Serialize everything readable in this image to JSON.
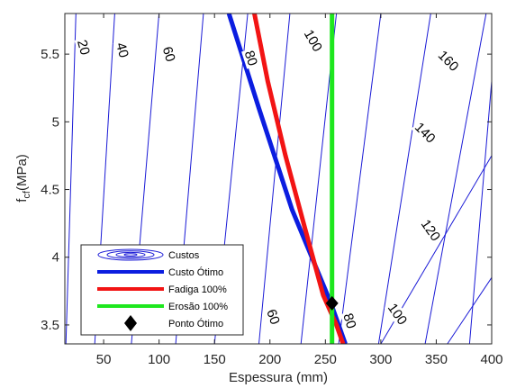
{
  "chart_data": {
    "type": "line",
    "xlabel": "Espessura (mm)",
    "ylabel_main": "f",
    "ylabel_sub": "cf",
    "ylabel_unit": "(MPa)",
    "xlim": [
      15,
      400
    ],
    "ylim": [
      3.36,
      5.8
    ],
    "xticks": [
      50,
      100,
      150,
      200,
      250,
      300,
      350,
      400
    ],
    "xtick_labels": [
      "50",
      "100",
      "150",
      "200",
      "250",
      "300",
      "350",
      "400"
    ],
    "yticks": [
      3.5,
      4,
      4.5,
      5,
      5.5
    ],
    "ytick_labels": [
      "3.5",
      "4",
      "4.5",
      "5",
      "5.5"
    ],
    "contours": {
      "color": "#1a1ad6",
      "lines": [
        {
          "points": [
            [
              25,
              5.8
            ],
            [
              16,
              3.36
            ]
          ]
        },
        {
          "points": [
            [
              60,
              5.8
            ],
            [
              42,
              3.36
            ]
          ]
        },
        {
          "points": [
            [
              100,
              5.8
            ],
            [
              75,
              3.36
            ]
          ]
        },
        {
          "points": [
            [
              140,
              5.8
            ],
            [
              115,
              3.36
            ]
          ]
        },
        {
          "points": [
            [
              180,
              5.8
            ],
            [
              150,
              3.36
            ]
          ]
        },
        {
          "points": [
            [
              218,
              5.8
            ],
            [
              190,
              3.36
            ]
          ]
        },
        {
          "points": [
            [
              260,
              5.8
            ],
            [
              228,
              3.36
            ]
          ]
        },
        {
          "points": [
            [
              300,
              5.8
            ],
            [
              262,
              3.36
            ]
          ]
        },
        {
          "points": [
            [
              345,
              5.8
            ],
            [
              298,
              3.36
            ]
          ]
        },
        {
          "points": [
            [
              395,
              5.8
            ],
            [
              340,
              3.36
            ]
          ]
        },
        {
          "points": [
            [
              400,
              5.3
            ],
            [
              380,
              3.36
            ]
          ]
        },
        {
          "points": [
            [
              400,
              4.75
            ],
            [
              300,
              3.36
            ]
          ]
        },
        {
          "points": [
            [
              400,
              3.85
            ],
            [
              360,
              3.36
            ]
          ]
        }
      ],
      "labels": [
        {
          "text": "20",
          "x": 32,
          "y": 5.55,
          "angle": 75
        },
        {
          "text": "40",
          "x": 67,
          "y": 5.53,
          "angle": 75
        },
        {
          "text": "60",
          "x": 109,
          "y": 5.5,
          "angle": 73
        },
        {
          "text": "80",
          "x": 183,
          "y": 5.47,
          "angle": 72
        },
        {
          "text": "100",
          "x": 239,
          "y": 5.6,
          "angle": 60
        },
        {
          "text": "160",
          "x": 361,
          "y": 5.45,
          "angle": 45
        },
        {
          "text": "140",
          "x": 340,
          "y": 4.92,
          "angle": 45
        },
        {
          "text": "120",
          "x": 345,
          "y": 4.2,
          "angle": 55
        },
        {
          "text": "100",
          "x": 315,
          "y": 3.58,
          "angle": 55
        },
        {
          "text": "60",
          "x": 203,
          "y": 3.56,
          "angle": 70
        },
        {
          "text": "80",
          "x": 272,
          "y": 3.53,
          "angle": 72
        }
      ]
    },
    "series": [
      {
        "name": "Custo Ótimo",
        "color": "#0b1de0",
        "width": 5,
        "x": [
          163,
          190,
          220,
          255,
          268
        ],
        "y": [
          5.8,
          5.1,
          4.35,
          3.66,
          3.36
        ]
      },
      {
        "name": "Fadiga 100%",
        "color": "#f21414",
        "width": 5,
        "x": [
          186,
          198,
          214,
          232,
          248,
          260,
          266
        ],
        "y": [
          5.8,
          5.3,
          4.75,
          4.2,
          3.72,
          3.5,
          3.36
        ]
      },
      {
        "name": "Erosão 100%",
        "color": "#1ee71e",
        "width": 5,
        "x": [
          256,
          256
        ],
        "y": [
          5.8,
          3.36
        ]
      }
    ],
    "optimum": {
      "name": "Ponto Ótimo",
      "x": 256,
      "y": 3.66
    },
    "legend": {
      "placement": "bottom-left",
      "entries": [
        "Custos",
        "Custo Ótimo",
        "Fadiga 100%",
        "Erosão 100%",
        "Ponto Ótimo"
      ]
    }
  }
}
